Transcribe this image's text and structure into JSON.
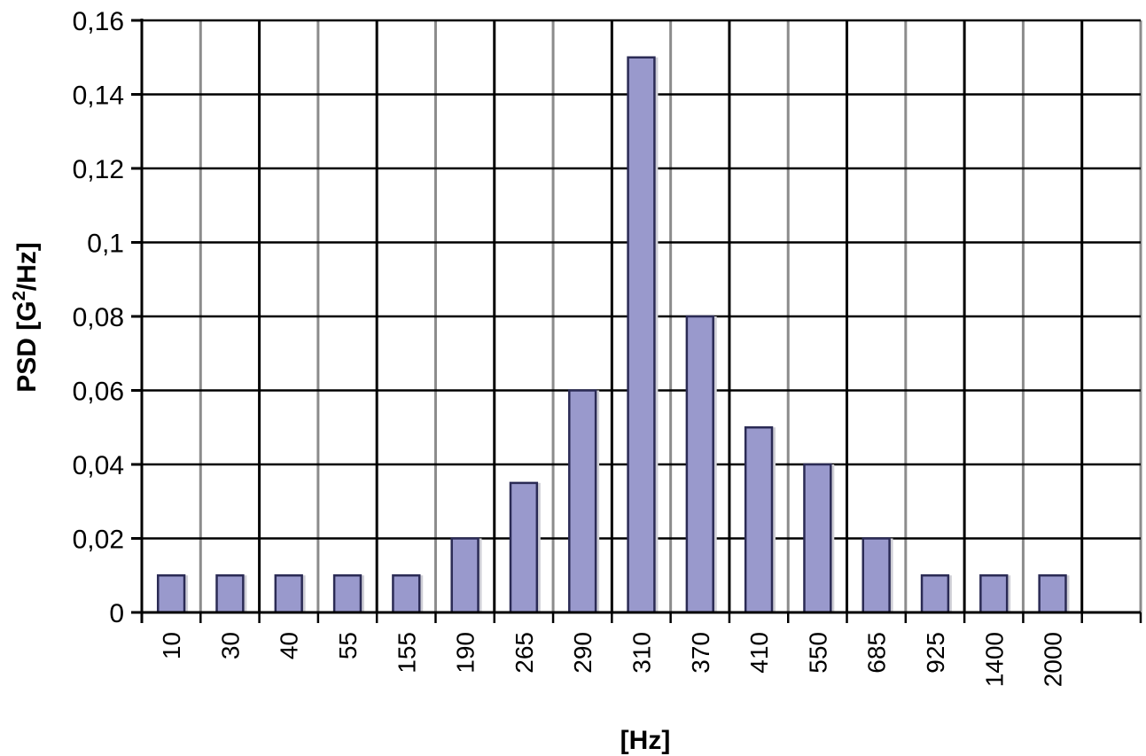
{
  "chart_data": {
    "type": "bar",
    "categories": [
      "10",
      "30",
      "40",
      "55",
      "155",
      "190",
      "265",
      "290",
      "310",
      "370",
      "410",
      "550",
      "685",
      "925",
      "1400",
      "2000"
    ],
    "values": [
      0.01,
      0.01,
      0.01,
      0.01,
      0.01,
      0.02,
      0.035,
      0.06,
      0.15,
      0.08,
      0.05,
      0.04,
      0.02,
      0.01,
      0.01,
      0.01
    ],
    "title": "",
    "xlabel": "[Hz]",
    "ylabel_parts": {
      "before": "PSD [G",
      "sup": "2",
      "after": "/Hz]"
    },
    "ylim": [
      0,
      0.16
    ],
    "yticks": [
      "0",
      "0,02",
      "0,04",
      "0,06",
      "0,08",
      "0,1",
      "0,12",
      "0,14",
      "0,16"
    ],
    "grid": true,
    "legend": "none",
    "colors": {
      "bar_fill": "#9999cc",
      "bar_edge": "#2b2b55",
      "grid_major": "#000000",
      "grid_minor": "#8c8c8c"
    }
  }
}
